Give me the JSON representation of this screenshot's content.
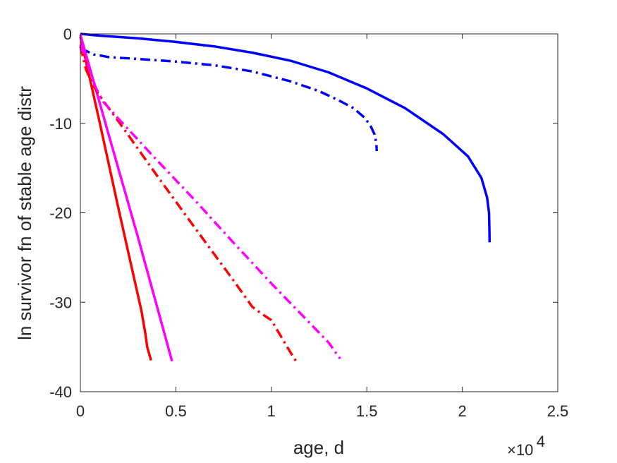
{
  "chart_data": {
    "type": "line",
    "xlabel": "age, d",
    "ylabel": "ln survivor fn of stable age distr",
    "x_multiplier_label": {
      "base": "×10",
      "exponent": "4"
    },
    "xlim": [
      0,
      25000
    ],
    "ylim": [
      -40,
      0
    ],
    "xticks": [
      0,
      5000,
      10000,
      15000,
      20000,
      25000
    ],
    "xtick_labels": [
      "0",
      "0.5",
      "1",
      "1.5",
      "2",
      "2.5"
    ],
    "yticks": [
      0,
      -10,
      -20,
      -30,
      -40
    ],
    "ytick_labels": [
      "0",
      "-10",
      "-20",
      "-30",
      "-40"
    ],
    "grid": false,
    "series": [
      {
        "color": "#0000ff",
        "style": "solid",
        "points": [
          [
            0,
            0
          ],
          [
            1000,
            -0.2
          ],
          [
            3000,
            -0.5
          ],
          [
            5000,
            -0.9
          ],
          [
            7000,
            -1.4
          ],
          [
            9000,
            -2.1
          ],
          [
            11000,
            -3.0
          ],
          [
            13000,
            -4.3
          ],
          [
            15000,
            -6.1
          ],
          [
            17000,
            -8.3
          ],
          [
            19000,
            -11.2
          ],
          [
            20300,
            -13.7
          ],
          [
            21000,
            -16.1
          ],
          [
            21300,
            -18.3
          ],
          [
            21400,
            -20.0
          ],
          [
            21420,
            -22.0
          ],
          [
            21430,
            -23.3
          ]
        ]
      },
      {
        "color": "#0000ff",
        "style": "dashdot",
        "points": [
          [
            0,
            -1.7
          ],
          [
            300,
            -1.9
          ],
          [
            700,
            -2.3
          ],
          [
            1000,
            -2.4
          ],
          [
            1500,
            -2.6
          ],
          [
            3000,
            -2.8
          ],
          [
            5000,
            -3.1
          ],
          [
            7000,
            -3.5
          ],
          [
            9000,
            -4.2
          ],
          [
            11000,
            -5.3
          ],
          [
            12500,
            -6.4
          ],
          [
            13500,
            -7.4
          ],
          [
            14300,
            -8.3
          ],
          [
            14900,
            -9.4
          ],
          [
            15200,
            -10.3
          ],
          [
            15400,
            -11.2
          ],
          [
            15500,
            -12.2
          ],
          [
            15520,
            -13.1
          ]
        ]
      },
      {
        "color": "#ff0000",
        "style": "solid",
        "points": [
          [
            0,
            -0.3
          ],
          [
            1000,
            -9.8
          ],
          [
            2000,
            -19.6
          ],
          [
            3200,
            -31.0
          ],
          [
            3400,
            -33.5
          ],
          [
            3500,
            -35.0
          ],
          [
            3700,
            -36.5
          ]
        ]
      },
      {
        "color": "#ff00ff",
        "style": "solid",
        "points": [
          [
            0,
            -0.1
          ],
          [
            1500,
            -11.4
          ],
          [
            3000,
            -22.6
          ],
          [
            4800,
            -36.6
          ]
        ]
      },
      {
        "color": "#ff0000",
        "style": "dashdot",
        "points": [
          [
            0,
            -1.4
          ],
          [
            300,
            -4.0
          ],
          [
            600,
            -5.5
          ],
          [
            1000,
            -6.9
          ],
          [
            2000,
            -9.8
          ],
          [
            4000,
            -15.8
          ],
          [
            6000,
            -21.7
          ],
          [
            8000,
            -27.5
          ],
          [
            9000,
            -30.5
          ],
          [
            9500,
            -31.3
          ],
          [
            10000,
            -32.0
          ],
          [
            10500,
            -33.8
          ],
          [
            11000,
            -35.6
          ],
          [
            11300,
            -36.6
          ]
        ]
      },
      {
        "color": "#ff00ff",
        "style": "dashdot",
        "points": [
          [
            0,
            -1.2
          ],
          [
            400,
            -3.5
          ],
          [
            800,
            -6.0
          ],
          [
            1200,
            -7.6
          ],
          [
            2000,
            -9.5
          ],
          [
            4000,
            -14.1
          ],
          [
            6000,
            -18.6
          ],
          [
            8000,
            -23.3
          ],
          [
            10000,
            -27.9
          ],
          [
            12000,
            -32.3
          ],
          [
            13000,
            -34.5
          ],
          [
            13600,
            -36.3
          ]
        ]
      }
    ]
  }
}
